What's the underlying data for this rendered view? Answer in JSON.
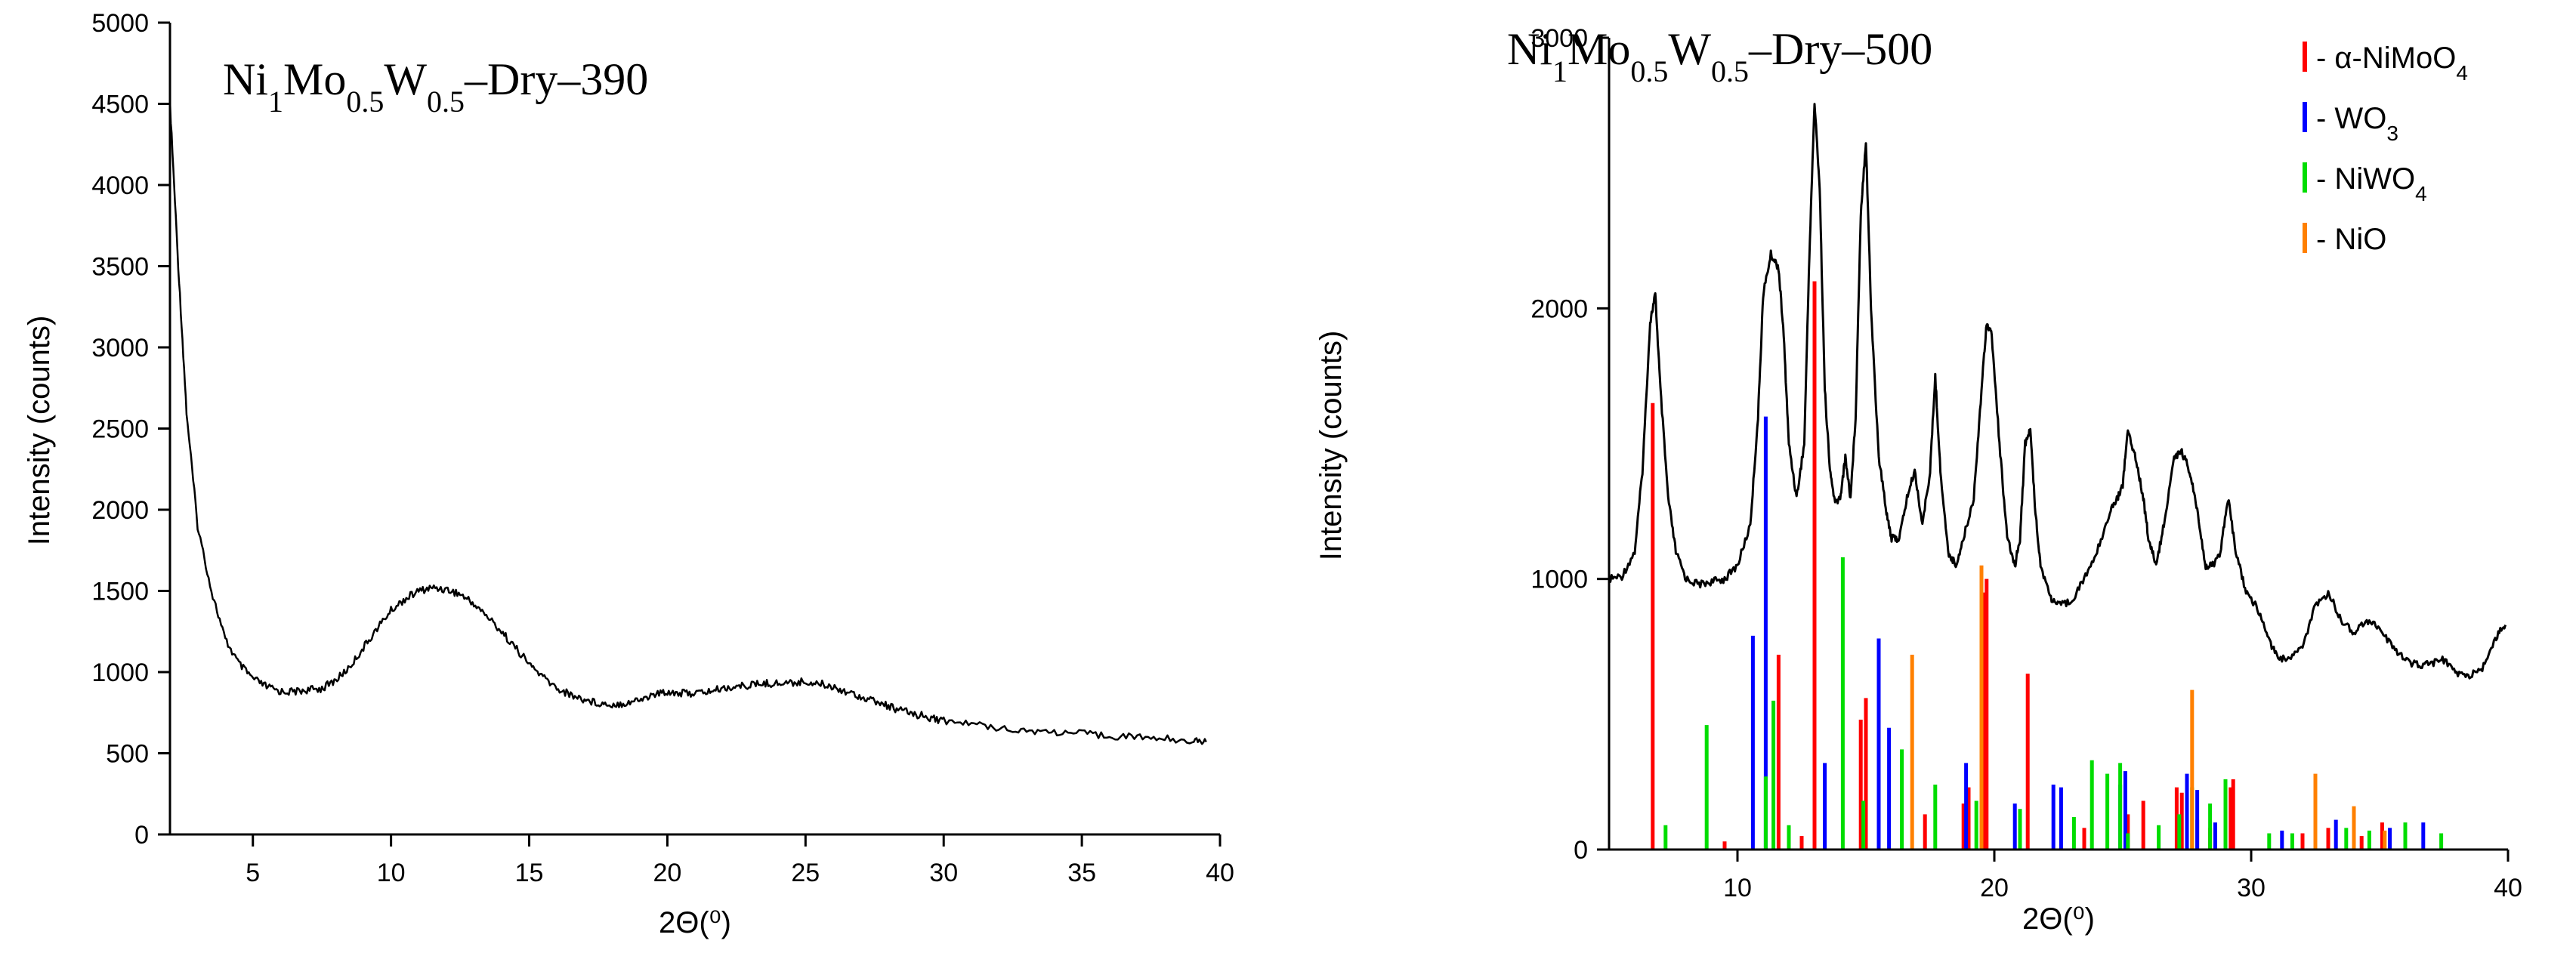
{
  "charts": [
    {
      "title": {
        "prefix": "Ni",
        "s1": "1",
        "m1": "Mo",
        "s2": "0.5",
        "m2": "W",
        "s3": "0.5",
        "suffix": "–Dry–390"
      },
      "chart_data": {
        "type": "line",
        "title": "Ni1Mo0.5W0.5–Dry–390",
        "xlabel": "2Θ(⁰)",
        "ylabel": "Intensity (counts)",
        "xlim": [
          2,
          40
        ],
        "ylim": [
          0,
          5000
        ],
        "xticks": [
          "5",
          "10",
          "15",
          "20",
          "25",
          "30",
          "35",
          "40"
        ],
        "yticks": [
          "0",
          "500",
          "1000",
          "1500",
          "2000",
          "2500",
          "3000",
          "3500",
          "4000",
          "4500",
          "5000"
        ],
        "series": [
          {
            "name": "Ni1Mo0.5W0.5–Dry–390",
            "color": "#000000",
            "x": [
              2.0,
              2.3,
              2.6,
              3.0,
              3.5,
              4.0,
              4.5,
              5.0,
              5.5,
              6.0,
              6.5,
              7.0,
              7.5,
              8.0,
              8.5,
              9.0,
              9.5,
              10.0,
              10.5,
              11.0,
              11.5,
              12.0,
              12.5,
              13.0,
              13.5,
              14.0,
              14.5,
              15.0,
              15.5,
              16.0,
              16.5,
              17.0,
              17.5,
              18.0,
              18.5,
              19.0,
              19.5,
              20.0,
              20.5,
              21.0,
              21.5,
              22.0,
              22.5,
              23.0,
              23.5,
              24.0,
              24.5,
              25.0,
              25.5,
              26.0,
              26.5,
              27.0,
              27.5,
              28.0,
              28.5,
              29.0,
              29.5,
              30.0,
              31.0,
              32.0,
              33.0,
              34.0,
              35.0,
              36.0,
              37.0,
              38.0,
              39.0,
              39.5
            ],
            "y": [
              4500,
              3500,
              2600,
              1900,
              1500,
              1200,
              1050,
              960,
              910,
              880,
              880,
              890,
              900,
              950,
              1030,
              1150,
              1270,
              1380,
              1450,
              1500,
              1520,
              1510,
              1480,
              1420,
              1340,
              1250,
              1150,
              1050,
              970,
              900,
              860,
              830,
              810,
              800,
              810,
              830,
              860,
              880,
              870,
              870,
              880,
              900,
              910,
              920,
              930,
              930,
              935,
              940,
              930,
              910,
              880,
              850,
              820,
              790,
              760,
              740,
              720,
              700,
              680,
              660,
              640,
              630,
              620,
              610,
              600,
              590,
              580,
              570
            ]
          }
        ]
      }
    },
    {
      "title": {
        "prefix": "Ni",
        "s1": "1",
        "m1": "Mo",
        "s2": "0.5",
        "m2": "W",
        "s3": "0.5",
        "suffix": "–Dry–500"
      },
      "legend": [
        {
          "main": "- α-NiMoO",
          "sub": "4",
          "color": "#ff0000"
        },
        {
          "main": "- WO",
          "sub": "3",
          "color": "#0000ff"
        },
        {
          "main": "- NiWO",
          "sub": "4",
          "color": "#00dd00"
        },
        {
          "main": "- NiO",
          "sub": "",
          "color": "#ff8000"
        }
      ],
      "chart_data": {
        "type": "line",
        "title": "Ni1Mo0.5W0.5–Dry–500",
        "xlabel": "2Θ(⁰)",
        "ylabel": "Intensity (counts)",
        "xlim": [
          5,
          40
        ],
        "ylim": [
          0,
          3000
        ],
        "xticks": [
          "10",
          "20",
          "30",
          "40"
        ],
        "yticks": [
          "0",
          "1000",
          "2000",
          "3000"
        ],
        "legend_position": "top-right",
        "series": [
          {
            "name": "Ni1Mo0.5W0.5–Dry–500",
            "color": "#000000",
            "x": [
              5.0,
              5.5,
              6.0,
              6.3,
              6.6,
              6.8,
              7.0,
              7.3,
              7.6,
              8.0,
              8.5,
              9.0,
              9.5,
              10.0,
              10.5,
              10.8,
              11.0,
              11.3,
              11.6,
              11.8,
              12.0,
              12.3,
              12.6,
              12.8,
              13.0,
              13.2,
              13.4,
              13.6,
              13.8,
              14.0,
              14.2,
              14.4,
              14.6,
              14.8,
              15.0,
              15.2,
              15.5,
              15.8,
              16.0,
              16.3,
              16.6,
              16.9,
              17.2,
              17.5,
              17.7,
              17.9,
              18.2,
              18.5,
              18.8,
              19.2,
              19.5,
              19.7,
              19.9,
              20.2,
              20.5,
              20.8,
              21.0,
              21.2,
              21.4,
              21.6,
              21.8,
              22.2,
              22.5,
              23.0,
              23.5,
              24.0,
              24.5,
              24.8,
              25.0,
              25.2,
              25.5,
              25.8,
              26.0,
              26.3,
              26.6,
              27.0,
              27.3,
              27.6,
              27.9,
              28.2,
              28.5,
              28.8,
              29.1,
              29.4,
              29.8,
              30.2,
              30.6,
              31.0,
              31.5,
              32.0,
              32.5,
              33.0,
              33.5,
              34.0,
              34.5,
              35.0,
              35.5,
              36.0,
              36.5,
              37.0,
              37.5,
              38.0,
              38.5,
              39.0,
              39.5,
              39.9
            ],
            "y": [
              1000,
              1010,
              1100,
              1400,
              1950,
              2050,
              1700,
              1300,
              1100,
              1000,
              980,
              990,
              1000,
              1050,
              1200,
              1600,
              2050,
              2200,
              2150,
              1900,
              1500,
              1300,
              1500,
              2200,
              2760,
              2450,
              1700,
              1400,
              1280,
              1300,
              1450,
              1300,
              1600,
              2350,
              2620,
              2000,
              1450,
              1250,
              1150,
              1150,
              1300,
              1400,
              1200,
              1400,
              1750,
              1400,
              1100,
              1050,
              1150,
              1300,
              1700,
              1950,
              1900,
              1500,
              1150,
              1050,
              1150,
              1500,
              1550,
              1250,
              1050,
              930,
              900,
              920,
              1000,
              1100,
              1250,
              1300,
              1350,
              1550,
              1450,
              1300,
              1150,
              1050,
              1200,
              1450,
              1470,
              1400,
              1250,
              1050,
              1050,
              1100,
              1300,
              1100,
              950,
              900,
              800,
              710,
              700,
              750,
              900,
              950,
              850,
              800,
              850,
              820,
              750,
              700,
              680,
              690,
              700,
              650,
              640,
              670,
              780,
              830
            ]
          }
        ],
        "reference_lines": [
          {
            "phase": "α-NiMoO4",
            "color": "#ff0000",
            "x": [
              6.7,
              9.5,
              11.6,
              12.5,
              13.0,
              14.8,
              15.0,
              17.3,
              18.8,
              19.0,
              19.6,
              19.7,
              21.3,
              23.5,
              25.2,
              25.8,
              27.1,
              27.3,
              27.9,
              28.4,
              29.2,
              29.3,
              32.0,
              33.0,
              34.3,
              35.1,
              36.0
            ],
            "y": [
              1650,
              30,
              720,
              50,
              2100,
              480,
              560,
              130,
              170,
              230,
              950,
              1000,
              650,
              80,
              130,
              180,
              230,
              210,
              110,
              80,
              230,
              260,
              60,
              80,
              50,
              100,
              60
            ]
          },
          {
            "phase": "WO3",
            "color": "#0000ff",
            "x": [
              10.6,
              11.1,
              13.4,
              15.5,
              15.9,
              18.9,
              20.8,
              22.3,
              22.6,
              24.9,
              25.1,
              27.5,
              27.9,
              28.6,
              31.2,
              33.3,
              35.4,
              36.7
            ],
            "y": [
              790,
              1600,
              320,
              780,
              450,
              320,
              170,
              240,
              230,
              240,
              290,
              280,
              220,
              100,
              70,
              110,
              80,
              100
            ]
          },
          {
            "phase": "NiWO4",
            "color": "#00dd00",
            "x": [
              7.2,
              8.8,
              11.1,
              11.4,
              12.0,
              14.1,
              14.9,
              16.4,
              17.7,
              19.3,
              21.0,
              23.1,
              23.8,
              24.4,
              24.9,
              25.2,
              26.4,
              27.2,
              27.7,
              28.4,
              29.0,
              30.7,
              31.6,
              32.5,
              33.7,
              34.6,
              36.0,
              37.4
            ],
            "y": [
              90,
              460,
              270,
              550,
              90,
              1080,
              180,
              370,
              240,
              180,
              150,
              120,
              330,
              280,
              320,
              60,
              90,
              130,
              230,
              170,
              260,
              60,
              60,
              70,
              80,
              70,
              100,
              60
            ]
          },
          {
            "phase": "NiO",
            "color": "#ff8000",
            "x": [
              16.8,
              19.5,
              27.7,
              32.5,
              34.0,
              35.2
            ],
            "y": [
              720,
              1050,
              590,
              280,
              160,
              70
            ]
          }
        ]
      }
    }
  ]
}
